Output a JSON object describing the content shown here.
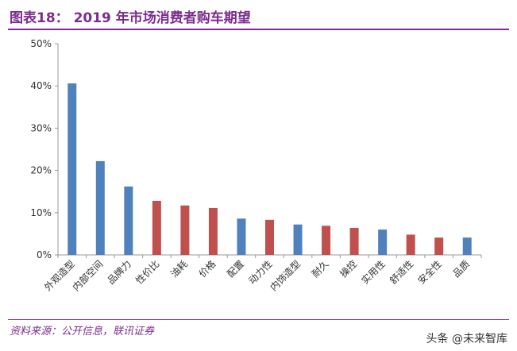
{
  "header": {
    "title": "图表18：  2019 年市场消费者购车期望"
  },
  "footer": {
    "source": "资料来源：公开信息，联讯证券",
    "watermark": "头条 @未来智库"
  },
  "chart_data": {
    "type": "bar",
    "title": "",
    "xlabel": "",
    "ylabel": "",
    "ylim": [
      0,
      50
    ],
    "yticks": [
      "0%",
      "10%",
      "20%",
      "30%",
      "40%",
      "50%"
    ],
    "grid": false,
    "categories": [
      "外观造型",
      "内部空间",
      "品牌力",
      "性价比",
      "油耗",
      "价格",
      "配置",
      "动力性",
      "内饰造型",
      "耐久",
      "操控",
      "实用性",
      "舒适性",
      "安全性",
      "品质"
    ],
    "values": [
      40.6,
      22.2,
      16.2,
      12.8,
      11.7,
      11.1,
      8.6,
      8.3,
      7.2,
      6.9,
      6.4,
      6.0,
      4.8,
      4.1,
      4.1
    ],
    "bar_colors": [
      "#4f81bd",
      "#4f81bd",
      "#4f81bd",
      "#c0504d",
      "#c0504d",
      "#c0504d",
      "#4f81bd",
      "#c0504d",
      "#4f81bd",
      "#c0504d",
      "#c0504d",
      "#4f81bd",
      "#c0504d",
      "#c0504d",
      "#4f81bd"
    ]
  }
}
